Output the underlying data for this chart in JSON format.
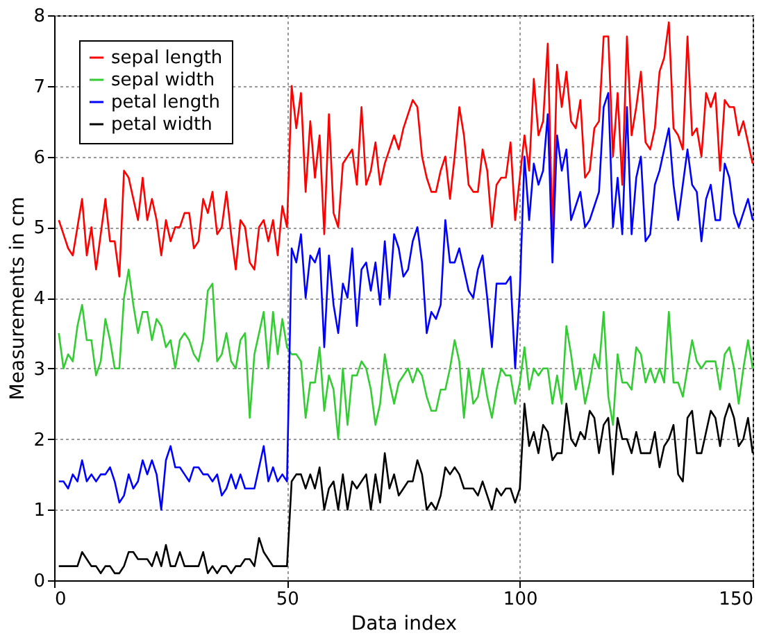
{
  "chart_data": {
    "type": "line",
    "xlabel": "Data index",
    "ylabel": "Measurements in cm",
    "x": [
      1,
      2,
      3,
      4,
      5,
      6,
      7,
      8,
      9,
      10,
      11,
      12,
      13,
      14,
      15,
      16,
      17,
      18,
      19,
      20,
      21,
      22,
      23,
      24,
      25,
      26,
      27,
      28,
      29,
      30,
      31,
      32,
      33,
      34,
      35,
      36,
      37,
      38,
      39,
      40,
      41,
      42,
      43,
      44,
      45,
      46,
      47,
      48,
      49,
      50,
      51,
      52,
      53,
      54,
      55,
      56,
      57,
      58,
      59,
      60,
      61,
      62,
      63,
      64,
      65,
      66,
      67,
      68,
      69,
      70,
      71,
      72,
      73,
      74,
      75,
      76,
      77,
      78,
      79,
      80,
      81,
      82,
      83,
      84,
      85,
      86,
      87,
      88,
      89,
      90,
      91,
      92,
      93,
      94,
      95,
      96,
      97,
      98,
      99,
      100,
      101,
      102,
      103,
      104,
      105,
      106,
      107,
      108,
      109,
      110,
      111,
      112,
      113,
      114,
      115,
      116,
      117,
      118,
      119,
      120,
      121,
      122,
      123,
      124,
      125,
      126,
      127,
      128,
      129,
      130,
      131,
      132,
      133,
      134,
      135,
      136,
      137,
      138,
      139,
      140,
      141,
      142,
      143,
      144,
      145,
      146,
      147,
      148,
      149,
      150
    ],
    "series": [
      {
        "name": "sepal length",
        "color": "#ff0000",
        "values": [
          5.1,
          4.9,
          4.7,
          4.6,
          5.0,
          5.4,
          4.6,
          5.0,
          4.4,
          4.9,
          5.4,
          4.8,
          4.8,
          4.3,
          5.8,
          5.7,
          5.4,
          5.1,
          5.7,
          5.1,
          5.4,
          5.1,
          4.6,
          5.1,
          4.8,
          5.0,
          5.0,
          5.2,
          5.2,
          4.7,
          4.8,
          5.4,
          5.2,
          5.5,
          4.9,
          5.0,
          5.5,
          4.9,
          4.4,
          5.1,
          5.0,
          4.5,
          4.4,
          5.0,
          5.1,
          4.8,
          5.1,
          4.6,
          5.3,
          5.0,
          7.0,
          6.4,
          6.9,
          5.5,
          6.5,
          5.7,
          6.3,
          4.9,
          6.6,
          5.2,
          5.0,
          5.9,
          6.0,
          6.1,
          5.6,
          6.7,
          5.6,
          5.8,
          6.2,
          5.6,
          5.9,
          6.1,
          6.3,
          6.1,
          6.4,
          6.6,
          6.8,
          6.7,
          6.0,
          5.7,
          5.5,
          5.5,
          5.8,
          6.0,
          5.4,
          6.0,
          6.7,
          6.3,
          5.6,
          5.5,
          5.5,
          6.1,
          5.8,
          5.0,
          5.6,
          5.7,
          5.7,
          6.2,
          5.1,
          5.7,
          6.3,
          5.8,
          7.1,
          6.3,
          6.5,
          7.6,
          4.9,
          7.3,
          6.7,
          7.2,
          6.5,
          6.4,
          6.8,
          5.7,
          5.8,
          6.4,
          6.5,
          7.7,
          7.7,
          6.0,
          6.9,
          5.6,
          7.7,
          6.3,
          6.7,
          7.2,
          6.2,
          6.1,
          6.4,
          7.2,
          7.4,
          7.9,
          6.4,
          6.3,
          6.1,
          7.7,
          6.3,
          6.4,
          6.0,
          6.9,
          6.7,
          6.9,
          5.8,
          6.8,
          6.7,
          6.7,
          6.3,
          6.5,
          6.2,
          5.9
        ]
      },
      {
        "name": "sepal width",
        "color": "#33cc33",
        "values": [
          3.5,
          3.0,
          3.2,
          3.1,
          3.6,
          3.9,
          3.4,
          3.4,
          2.9,
          3.1,
          3.7,
          3.4,
          3.0,
          3.0,
          4.0,
          4.4,
          3.9,
          3.5,
          3.8,
          3.8,
          3.4,
          3.7,
          3.6,
          3.3,
          3.4,
          3.0,
          3.4,
          3.5,
          3.4,
          3.2,
          3.1,
          3.4,
          4.1,
          4.2,
          3.1,
          3.2,
          3.5,
          3.1,
          3.0,
          3.4,
          3.5,
          2.3,
          3.2,
          3.5,
          3.8,
          3.0,
          3.8,
          3.2,
          3.7,
          3.3,
          3.2,
          3.2,
          3.1,
          2.3,
          2.8,
          2.8,
          3.3,
          2.4,
          2.9,
          2.7,
          2.0,
          3.0,
          2.2,
          2.9,
          2.9,
          3.1,
          3.0,
          2.7,
          2.2,
          2.5,
          3.2,
          2.8,
          2.5,
          2.8,
          2.9,
          3.0,
          2.8,
          3.0,
          2.9,
          2.6,
          2.4,
          2.4,
          2.7,
          2.7,
          3.0,
          3.4,
          3.1,
          2.3,
          3.0,
          2.5,
          2.6,
          3.0,
          2.6,
          2.3,
          2.7,
          3.0,
          2.9,
          2.9,
          2.5,
          2.8,
          3.3,
          2.7,
          3.0,
          2.9,
          3.0,
          3.0,
          2.5,
          2.9,
          2.5,
          3.6,
          3.2,
          2.7,
          3.0,
          2.5,
          2.8,
          3.2,
          3.0,
          3.8,
          2.6,
          2.2,
          3.2,
          2.8,
          2.8,
          2.7,
          3.3,
          3.2,
          2.8,
          3.0,
          2.8,
          3.0,
          2.8,
          3.8,
          2.8,
          2.8,
          2.6,
          3.0,
          3.4,
          3.1,
          3.0,
          3.1,
          3.1,
          3.1,
          2.7,
          3.2,
          3.3,
          3.0,
          2.5,
          3.0,
          3.4,
          3.0
        ]
      },
      {
        "name": "petal length",
        "color": "#0000ff",
        "values": [
          1.4,
          1.4,
          1.3,
          1.5,
          1.4,
          1.7,
          1.4,
          1.5,
          1.4,
          1.5,
          1.5,
          1.6,
          1.4,
          1.1,
          1.2,
          1.5,
          1.3,
          1.4,
          1.7,
          1.5,
          1.7,
          1.5,
          1.0,
          1.7,
          1.9,
          1.6,
          1.6,
          1.5,
          1.4,
          1.6,
          1.6,
          1.5,
          1.5,
          1.4,
          1.5,
          1.2,
          1.3,
          1.5,
          1.3,
          1.5,
          1.3,
          1.3,
          1.3,
          1.6,
          1.9,
          1.4,
          1.6,
          1.4,
          1.5,
          1.4,
          4.7,
          4.5,
          4.9,
          4.0,
          4.6,
          4.5,
          4.7,
          3.3,
          4.6,
          3.9,
          3.5,
          4.2,
          4.0,
          4.7,
          3.6,
          4.4,
          4.5,
          4.1,
          4.5,
          3.9,
          4.8,
          4.0,
          4.9,
          4.7,
          4.3,
          4.4,
          4.8,
          5.0,
          4.5,
          3.5,
          3.8,
          3.7,
          3.9,
          5.1,
          4.5,
          4.5,
          4.7,
          4.4,
          4.1,
          4.0,
          4.4,
          4.6,
          4.0,
          3.3,
          4.2,
          4.2,
          4.2,
          4.3,
          3.0,
          4.1,
          6.0,
          5.1,
          5.9,
          5.6,
          5.8,
          6.6,
          4.5,
          6.3,
          5.8,
          6.1,
          5.1,
          5.3,
          5.5,
          5.0,
          5.1,
          5.3,
          5.5,
          6.7,
          6.9,
          5.0,
          5.7,
          4.9,
          6.7,
          4.9,
          5.7,
          6.0,
          4.8,
          4.9,
          5.6,
          5.8,
          6.1,
          6.4,
          5.6,
          5.1,
          5.6,
          6.1,
          5.6,
          5.5,
          4.8,
          5.4,
          5.6,
          5.1,
          5.1,
          5.9,
          5.7,
          5.2,
          5.0,
          5.2,
          5.4,
          5.1
        ]
      },
      {
        "name": "petal width",
        "color": "#000000",
        "values": [
          0.2,
          0.2,
          0.2,
          0.2,
          0.2,
          0.4,
          0.3,
          0.2,
          0.2,
          0.1,
          0.2,
          0.2,
          0.1,
          0.1,
          0.2,
          0.4,
          0.4,
          0.3,
          0.3,
          0.3,
          0.2,
          0.4,
          0.2,
          0.5,
          0.2,
          0.2,
          0.4,
          0.2,
          0.2,
          0.2,
          0.2,
          0.4,
          0.1,
          0.2,
          0.1,
          0.2,
          0.2,
          0.1,
          0.2,
          0.2,
          0.3,
          0.3,
          0.2,
          0.6,
          0.4,
          0.3,
          0.2,
          0.2,
          0.2,
          0.2,
          1.4,
          1.5,
          1.5,
          1.3,
          1.5,
          1.3,
          1.6,
          1.0,
          1.3,
          1.4,
          1.0,
          1.5,
          1.0,
          1.4,
          1.3,
          1.4,
          1.5,
          1.0,
          1.5,
          1.1,
          1.8,
          1.3,
          1.5,
          1.2,
          1.3,
          1.4,
          1.4,
          1.7,
          1.5,
          1.0,
          1.1,
          1.0,
          1.2,
          1.6,
          1.5,
          1.6,
          1.5,
          1.3,
          1.3,
          1.3,
          1.2,
          1.4,
          1.2,
          1.0,
          1.3,
          1.2,
          1.3,
          1.3,
          1.1,
          1.3,
          2.5,
          1.9,
          2.1,
          1.8,
          2.2,
          2.1,
          1.7,
          1.8,
          1.8,
          2.5,
          2.0,
          1.9,
          2.1,
          2.0,
          2.4,
          2.3,
          1.8,
          2.2,
          2.3,
          1.5,
          2.3,
          2.0,
          2.0,
          1.8,
          2.1,
          1.8,
          1.8,
          1.8,
          2.1,
          1.6,
          1.9,
          2.0,
          2.2,
          1.5,
          1.4,
          2.3,
          2.4,
          1.8,
          1.8,
          2.1,
          2.4,
          2.3,
          1.9,
          2.3,
          2.5,
          2.3,
          1.9,
          2.0,
          2.3,
          1.8
        ]
      }
    ],
    "xlim": [
      0,
      150
    ],
    "xticks": [
      0,
      50,
      100,
      150
    ],
    "ylim": [
      0,
      8
    ],
    "yticks": [
      0,
      1,
      2,
      3,
      4,
      5,
      6,
      7,
      8
    ],
    "grid": true,
    "legend": "top left",
    "marker": "none",
    "line_style": "solid"
  }
}
